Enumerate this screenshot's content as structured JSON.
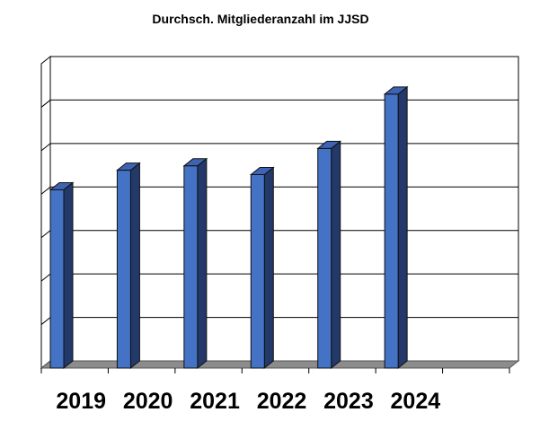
{
  "chart_data": {
    "type": "bar",
    "title": "Durchsch. Mitgliederanzahl im  JJSD",
    "categories": [
      "2019",
      "2020",
      "2021",
      "2022",
      "2023",
      "2024"
    ],
    "values": [
      41,
      45.5,
      46.5,
      44.5,
      50.5,
      63
    ],
    "slot_count": 7,
    "ylim": [
      0,
      70
    ],
    "ytick_step": 10,
    "ytick_labels_shown": false,
    "grid": true,
    "legend": "none",
    "style": "3d-column",
    "colors": {
      "bar_front": "#4472c4",
      "bar_side": "#22396a",
      "bar_top": "#3d63b2",
      "floor": "#8c8c8c",
      "grid": "#000000",
      "background": "#ffffff"
    }
  }
}
